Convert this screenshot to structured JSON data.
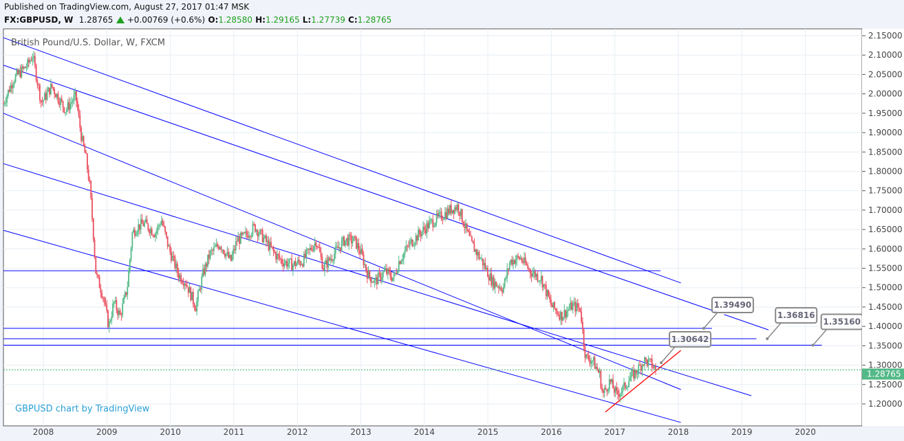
{
  "header": {
    "published": "Published on TradingView.com, August 27, 2017 01:47 MSK",
    "symbol": "FX:GBPUSD, W",
    "last": "1.28765",
    "change": "+0.00769 (+0.6%)",
    "o_label": "O:",
    "o": "1.28580",
    "h_label": "H:",
    "h": "1.29165",
    "l_label": "L:",
    "l": "1.27739",
    "c_label": "C:",
    "c": "1.28765"
  },
  "chart_data": {
    "type": "candlestick",
    "title": "British Pound/U.S. Dollar, W, FXCM",
    "watermark": "GBPUSD chart by TradingView",
    "xlim": [
      2007.37,
      2020.9
    ],
    "ylim": [
      1.16,
      2.17
    ],
    "x_ticks": [
      "2008",
      "2009",
      "2010",
      "2011",
      "2012",
      "2013",
      "2014",
      "2015",
      "2016",
      "2017",
      "2018",
      "2019",
      "2020"
    ],
    "y_ticks": [
      "1.20000",
      "1.25000",
      "1.30000",
      "1.35000",
      "1.40000",
      "1.45000",
      "1.50000",
      "1.55000",
      "1.60000",
      "1.65000",
      "1.70000",
      "1.75000",
      "1.80000",
      "1.85000",
      "1.90000",
      "1.95000",
      "2.00000",
      "2.05000",
      "2.10000",
      "2.15000"
    ],
    "current_price": 1.28765,
    "current_price_label": "1.28765",
    "colors": {
      "up": "#53b987",
      "down": "#eb4d5c",
      "channel": "#0000ff",
      "support": "#ff0000",
      "price_line": "#3cb371"
    },
    "close_path": [
      [
        2007.37,
        1.976
      ],
      [
        2007.53,
        2.038
      ],
      [
        2007.75,
        2.074
      ],
      [
        2007.83,
        2.1
      ],
      [
        2007.97,
        1.976
      ],
      [
        2008.13,
        2.02
      ],
      [
        2008.35,
        1.958
      ],
      [
        2008.51,
        1.994
      ],
      [
        2008.6,
        1.888
      ],
      [
        2008.67,
        1.835
      ],
      [
        2008.73,
        1.764
      ],
      [
        2008.78,
        1.657
      ],
      [
        2008.83,
        1.533
      ],
      [
        2008.94,
        1.48
      ],
      [
        2009.03,
        1.4
      ],
      [
        2009.11,
        1.462
      ],
      [
        2009.21,
        1.427
      ],
      [
        2009.32,
        1.498
      ],
      [
        2009.4,
        1.64
      ],
      [
        2009.48,
        1.657
      ],
      [
        2009.59,
        1.666
      ],
      [
        2009.76,
        1.64
      ],
      [
        2009.86,
        1.675
      ],
      [
        2009.97,
        1.604
      ],
      [
        2010.13,
        1.533
      ],
      [
        2010.24,
        1.515
      ],
      [
        2010.4,
        1.45
      ],
      [
        2010.51,
        1.533
      ],
      [
        2010.62,
        1.586
      ],
      [
        2010.78,
        1.613
      ],
      [
        2010.95,
        1.568
      ],
      [
        2011.05,
        1.622
      ],
      [
        2011.16,
        1.631
      ],
      [
        2011.33,
        1.657
      ],
      [
        2011.49,
        1.622
      ],
      [
        2011.65,
        1.586
      ],
      [
        2011.76,
        1.568
      ],
      [
        2011.92,
        1.559
      ],
      [
        2012.08,
        1.568
      ],
      [
        2012.3,
        1.622
      ],
      [
        2012.41,
        1.551
      ],
      [
        2012.57,
        1.586
      ],
      [
        2012.74,
        1.622
      ],
      [
        2012.9,
        1.622
      ],
      [
        2013.01,
        1.586
      ],
      [
        2013.11,
        1.533
      ],
      [
        2013.22,
        1.515
      ],
      [
        2013.38,
        1.542
      ],
      [
        2013.52,
        1.524
      ],
      [
        2013.6,
        1.568
      ],
      [
        2013.77,
        1.613
      ],
      [
        2013.93,
        1.64
      ],
      [
        2014.09,
        1.666
      ],
      [
        2014.26,
        1.684
      ],
      [
        2014.42,
        1.702
      ],
      [
        2014.53,
        1.711
      ],
      [
        2014.64,
        1.657
      ],
      [
        2014.74,
        1.613
      ],
      [
        2014.91,
        1.568
      ],
      [
        2015.07,
        1.515
      ],
      [
        2015.24,
        1.498
      ],
      [
        2015.35,
        1.568
      ],
      [
        2015.51,
        1.577
      ],
      [
        2015.67,
        1.542
      ],
      [
        2015.84,
        1.524
      ],
      [
        2016.0,
        1.453
      ],
      [
        2016.16,
        1.427
      ],
      [
        2016.33,
        1.453
      ],
      [
        2016.46,
        1.445
      ],
      [
        2016.5,
        1.374
      ],
      [
        2016.54,
        1.32
      ],
      [
        2016.65,
        1.312
      ],
      [
        2016.76,
        1.276
      ],
      [
        2016.81,
        1.223
      ],
      [
        2016.92,
        1.259
      ],
      [
        2017.03,
        1.223
      ],
      [
        2017.14,
        1.241
      ],
      [
        2017.24,
        1.267
      ],
      [
        2017.35,
        1.285
      ],
      [
        2017.46,
        1.312
      ],
      [
        2017.57,
        1.303
      ],
      [
        2017.65,
        1.28765
      ]
    ],
    "channel_lines": [
      [
        [
          2007.37,
          2.145
        ],
        [
          2018.04,
          1.512
        ]
      ],
      [
        [
          2007.37,
          2.074
        ],
        [
          2019.42,
          1.391
        ]
      ],
      [
        [
          2007.37,
          1.95
        ],
        [
          2018.04,
          1.237
        ]
      ],
      [
        [
          2007.37,
          1.82
        ],
        [
          2019.15,
          1.221
        ]
      ],
      [
        [
          2007.37,
          1.648
        ],
        [
          2018.04,
          1.152
        ]
      ]
    ],
    "horizontal_lines": [
      {
        "price": 1.5435,
        "to": 2017.72
      },
      {
        "price": 1.3949,
        "to": 2018.53
      },
      {
        "price": 1.36816,
        "to": 2019.23
      },
      {
        "price": 1.3516,
        "to": 2020.26
      }
    ],
    "support_line": [
      [
        2016.85,
        1.179
      ],
      [
        2018.04,
        1.338
      ]
    ],
    "callouts": [
      {
        "label": "1.39490",
        "at": [
          2018.4,
          1.3949
        ]
      },
      {
        "label": "1.36816",
        "at": [
          2019.4,
          1.36816
        ]
      },
      {
        "label": "1.35160",
        "at": [
          2020.12,
          1.3516
        ]
      },
      {
        "label": "1.30642",
        "at": [
          2017.73,
          1.30642
        ]
      }
    ]
  }
}
